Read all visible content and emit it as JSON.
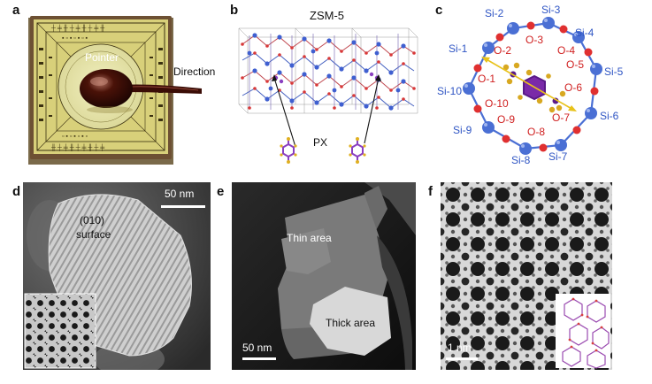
{
  "panel_labels": {
    "a": "a",
    "b": "b",
    "c": "c",
    "d": "d",
    "e": "e",
    "f": "f"
  },
  "panel_a": {
    "pointer": "Pointer",
    "direction": "Direction"
  },
  "panel_b": {
    "title": "ZSM-5",
    "molecule": "PX"
  },
  "panel_c": {
    "si_labels": [
      "Si-1",
      "Si-2",
      "Si-3",
      "Si-4",
      "Si-5",
      "Si-6",
      "Si-7",
      "Si-8",
      "Si-9",
      "Si-10"
    ],
    "o_labels": [
      "O-1",
      "O-2",
      "O-3",
      "O-4",
      "O-5",
      "O-6",
      "O-7",
      "O-8",
      "O-9",
      "O-10"
    ]
  },
  "panel_d": {
    "scale": "50 nm",
    "surface_line1": "(010)",
    "surface_line2": "surface"
  },
  "panel_e": {
    "scale": "50 nm",
    "thin": "Thin area",
    "thick": "Thick area"
  },
  "panel_f": {
    "scale": "1 nm"
  },
  "colors": {
    "si": "#4a6fd4",
    "o": "#e03030",
    "label_si": "#2f55c4",
    "label_o": "#d02020",
    "arrow": "#e8c21a"
  }
}
